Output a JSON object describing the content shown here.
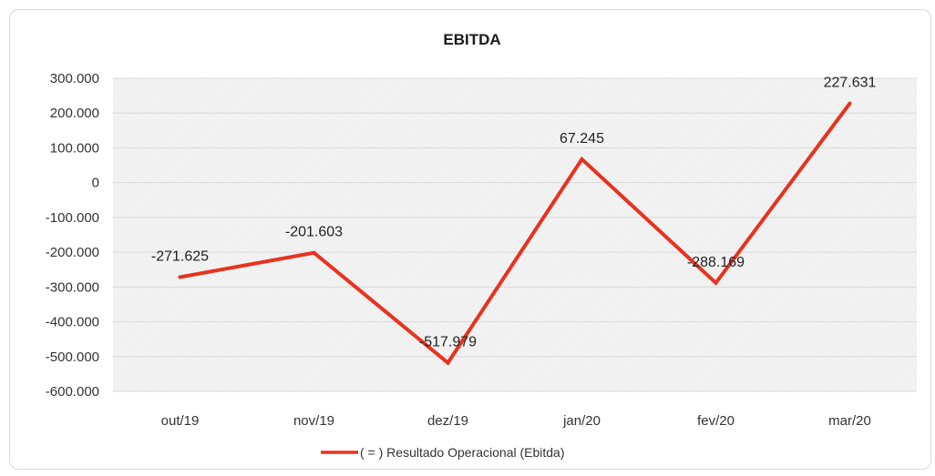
{
  "chart_data": {
    "type": "line",
    "title": "EBITDA",
    "xlabel": "",
    "ylabel": "",
    "categories": [
      "out/19",
      "nov/19",
      "dez/19",
      "jan/20",
      "fev/20",
      "mar/20"
    ],
    "series": [
      {
        "name": "( = ) Resultado Operacional (Ebitda)",
        "values": [
          -271625,
          -201603,
          -517979,
          67245,
          -288169,
          227631
        ],
        "data_labels": [
          "-271.625",
          "-201.603",
          "-517.979",
          "67.245",
          "-288.169",
          "227.631"
        ],
        "color": "#e8321e"
      }
    ],
    "ylim": [
      -600000,
      300000
    ],
    "y_ticks": [
      300000,
      200000,
      100000,
      0,
      -100000,
      -200000,
      -300000,
      -400000,
      -500000,
      -600000
    ],
    "y_tick_labels": [
      "300.000",
      "200.000",
      "100.000",
      "0",
      "-100.000",
      "-200.000",
      "-300.000",
      "-400.000",
      "-500.000",
      "-600.000"
    ],
    "grid": true,
    "legend_position": "bottom"
  },
  "colors": {
    "line": "#e8321e",
    "plot_area": "#f2f2f2",
    "gridline": "#d9d9d9"
  }
}
